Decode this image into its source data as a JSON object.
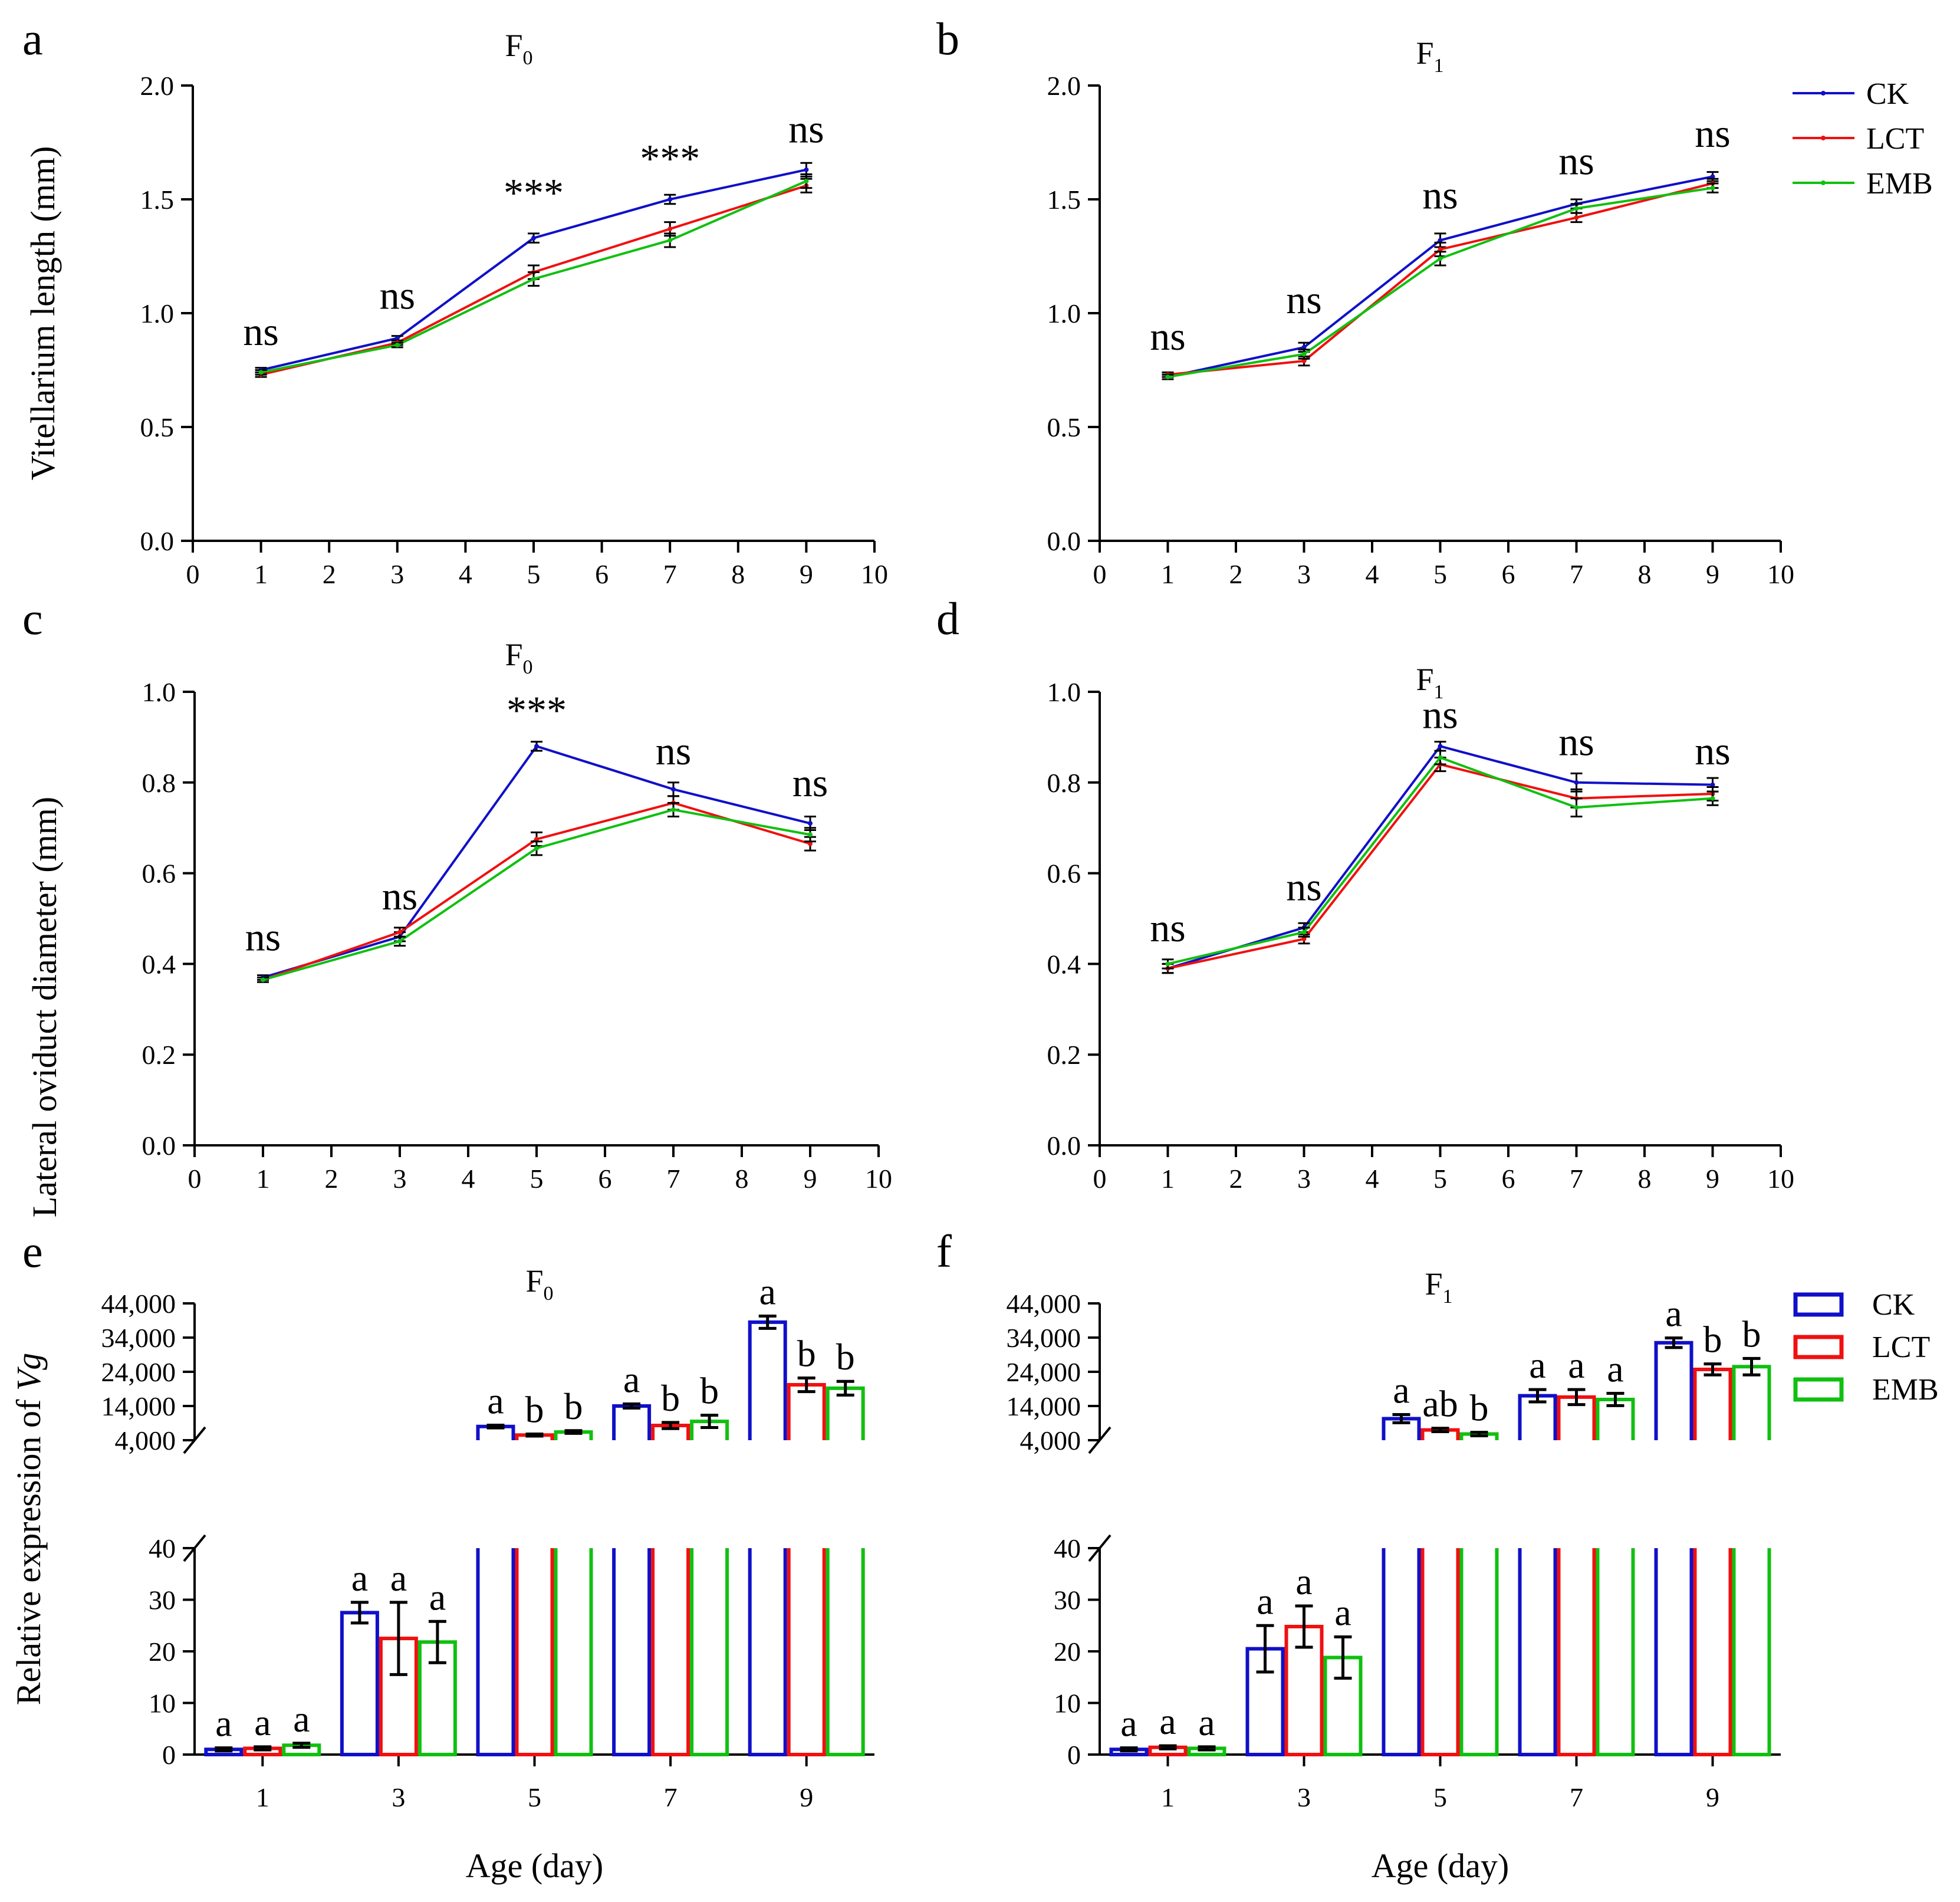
{
  "colors": {
    "CK": "#1010c8",
    "LCT": "#f01010",
    "EMB": "#10c010",
    "ink": "#000000"
  },
  "legend": {
    "line": [
      "CK",
      "LCT",
      "EMB"
    ],
    "bar": [
      "CK",
      "LCT",
      "EMB"
    ]
  },
  "x_axis_title": "Age (day)",
  "chart_data": [
    {
      "id": "a",
      "type": "line",
      "title": "F0",
      "title_main": "F",
      "title_sub": "0",
      "ylabel": "Vitellarium length (mm)",
      "xlim": [
        0,
        10
      ],
      "ylim": [
        0,
        2.0
      ],
      "xticks": [
        0,
        1,
        2,
        3,
        4,
        5,
        6,
        7,
        8,
        9,
        10
      ],
      "yticks": [
        "0.0",
        "0.5",
        "1.0",
        "1.5",
        "2.0"
      ],
      "x": [
        1,
        3,
        5,
        7,
        9
      ],
      "series": [
        {
          "name": "CK",
          "values": [
            0.75,
            0.89,
            1.33,
            1.5,
            1.63
          ],
          "err": [
            0.01,
            0.01,
            0.02,
            0.02,
            0.03
          ]
        },
        {
          "name": "LCT",
          "values": [
            0.73,
            0.87,
            1.18,
            1.37,
            1.56
          ],
          "err": [
            0.01,
            0.01,
            0.03,
            0.03,
            0.03
          ]
        },
        {
          "name": "EMB",
          "values": [
            0.74,
            0.86,
            1.15,
            1.32,
            1.58
          ],
          "err": [
            0.01,
            0.01,
            0.03,
            0.03,
            0.03
          ]
        }
      ],
      "annotations": [
        "ns",
        "ns",
        "***",
        "***",
        "ns"
      ],
      "annotation_y": [
        0.86,
        1.02,
        1.47,
        1.62,
        1.75
      ]
    },
    {
      "id": "b",
      "type": "line",
      "title": "F1",
      "title_main": "F",
      "title_sub": "1",
      "ylabel": "",
      "xlim": [
        0,
        10
      ],
      "ylim": [
        0,
        2.0
      ],
      "xticks": [
        0,
        1,
        2,
        3,
        4,
        5,
        6,
        7,
        8,
        9,
        10
      ],
      "yticks": [
        "0.0",
        "0.5",
        "1.0",
        "1.5",
        "2.0"
      ],
      "x": [
        1,
        3,
        5,
        7,
        9
      ],
      "series": [
        {
          "name": "CK",
          "values": [
            0.72,
            0.85,
            1.32,
            1.48,
            1.6
          ],
          "err": [
            0.01,
            0.02,
            0.03,
            0.02,
            0.02
          ]
        },
        {
          "name": "LCT",
          "values": [
            0.73,
            0.79,
            1.28,
            1.42,
            1.57
          ],
          "err": [
            0.01,
            0.02,
            0.03,
            0.02,
            0.02
          ]
        },
        {
          "name": "EMB",
          "values": [
            0.72,
            0.82,
            1.24,
            1.46,
            1.55
          ],
          "err": [
            0.01,
            0.02,
            0.03,
            0.02,
            0.02
          ]
        }
      ],
      "annotations": [
        "ns",
        "ns",
        "ns",
        "ns",
        "ns"
      ],
      "annotation_y": [
        0.84,
        1.0,
        1.46,
        1.61,
        1.73
      ]
    },
    {
      "id": "c",
      "type": "line",
      "title": "F0",
      "title_main": "F",
      "title_sub": "0",
      "ylabel": "Lateral oviduct diameter (mm)",
      "xlim": [
        0,
        10
      ],
      "ylim": [
        0,
        1.0
      ],
      "xticks": [
        0,
        1,
        2,
        3,
        4,
        5,
        6,
        7,
        8,
        9,
        10
      ],
      "yticks": [
        "0.0",
        "0.2",
        "0.4",
        "0.6",
        "0.8",
        "1.0"
      ],
      "x": [
        1,
        3,
        5,
        7,
        9
      ],
      "series": [
        {
          "name": "CK",
          "values": [
            0.37,
            0.46,
            0.88,
            0.785,
            0.71
          ],
          "err": [
            0.005,
            0.01,
            0.01,
            0.015,
            0.015
          ]
        },
        {
          "name": "LCT",
          "values": [
            0.365,
            0.47,
            0.675,
            0.755,
            0.665
          ],
          "err": [
            0.005,
            0.01,
            0.015,
            0.015,
            0.015
          ]
        },
        {
          "name": "EMB",
          "values": [
            0.365,
            0.45,
            0.655,
            0.74,
            0.685
          ],
          "err": [
            0.005,
            0.01,
            0.015,
            0.015,
            0.015
          ]
        }
      ],
      "annotations": [
        "ns",
        "ns",
        "***",
        "ns",
        "ns"
      ],
      "annotation_y": [
        0.43,
        0.52,
        0.93,
        0.84,
        0.77
      ]
    },
    {
      "id": "d",
      "type": "line",
      "title": "F1",
      "title_main": "F",
      "title_sub": "1",
      "ylabel": "",
      "xlim": [
        0,
        10
      ],
      "ylim": [
        0,
        1.0
      ],
      "xticks": [
        0,
        1,
        2,
        3,
        4,
        5,
        6,
        7,
        8,
        9,
        10
      ],
      "yticks": [
        "0.0",
        "0.2",
        "0.4",
        "0.6",
        "0.8",
        "1.0"
      ],
      "x": [
        1,
        3,
        5,
        7,
        9
      ],
      "series": [
        {
          "name": "CK",
          "values": [
            0.39,
            0.48,
            0.88,
            0.8,
            0.795
          ],
          "err": [
            0.01,
            0.01,
            0.01,
            0.02,
            0.015
          ]
        },
        {
          "name": "LCT",
          "values": [
            0.39,
            0.455,
            0.84,
            0.765,
            0.775
          ],
          "err": [
            0.01,
            0.01,
            0.015,
            0.02,
            0.015
          ]
        },
        {
          "name": "EMB",
          "values": [
            0.4,
            0.47,
            0.855,
            0.745,
            0.765
          ],
          "err": [
            0.01,
            0.01,
            0.015,
            0.02,
            0.015
          ]
        }
      ],
      "annotations": [
        "ns",
        "ns",
        "ns",
        "ns",
        "ns"
      ],
      "annotation_y": [
        0.45,
        0.54,
        0.92,
        0.86,
        0.84
      ]
    },
    {
      "id": "e",
      "type": "bar",
      "title": "F0",
      "title_main": "F",
      "title_sub": "0",
      "ylabel": "Relative expression of ",
      "ylabel_gene": "Vg",
      "categories": [
        "1",
        "3",
        "5",
        "7",
        "9"
      ],
      "lower_ylim": [
        0,
        40
      ],
      "lower_yticks": [
        "0",
        "10",
        "20",
        "30",
        "40"
      ],
      "upper_ylim": [
        4000,
        44000
      ],
      "upper_yticks": [
        "4,000",
        "14,000",
        "24,000",
        "34,000",
        "44,000"
      ],
      "series": [
        {
          "name": "CK",
          "values": [
            1,
            27.5,
            8000,
            14000,
            38500
          ],
          "err": [
            0.3,
            2,
            400,
            600,
            1800
          ]
        },
        {
          "name": "LCT",
          "values": [
            1.2,
            22.5,
            5500,
            8300,
            20200
          ],
          "err": [
            0.3,
            7,
            300,
            900,
            2000
          ]
        },
        {
          "name": "EMB",
          "values": [
            1.8,
            21.8,
            6400,
            9500,
            19200
          ],
          "err": [
            0.4,
            4,
            400,
            1800,
            2000
          ]
        }
      ],
      "letters": [
        [
          "a",
          "a",
          "a"
        ],
        [
          "a",
          "a",
          "a"
        ],
        [
          "a",
          "b",
          "b"
        ],
        [
          "a",
          "b",
          "b"
        ],
        [
          "a",
          "b",
          "b"
        ]
      ]
    },
    {
      "id": "f",
      "type": "bar",
      "title": "F1",
      "title_main": "F",
      "title_sub": "1",
      "ylabel": "",
      "categories": [
        "1",
        "3",
        "5",
        "7",
        "9"
      ],
      "lower_ylim": [
        0,
        40
      ],
      "lower_yticks": [
        "0",
        "10",
        "20",
        "30",
        "40"
      ],
      "upper_ylim": [
        4000,
        44000
      ],
      "upper_yticks": [
        "4,000",
        "14,000",
        "24,000",
        "34,000",
        "44,000"
      ],
      "series": [
        {
          "name": "CK",
          "values": [
            1,
            20.5,
            10300,
            17000,
            32500
          ],
          "err": [
            0.3,
            4.5,
            1200,
            1800,
            1400
          ]
        },
        {
          "name": "LCT",
          "values": [
            1.4,
            24.8,
            7000,
            16600,
            24700
          ],
          "err": [
            0.3,
            4,
            500,
            2200,
            1600
          ]
        },
        {
          "name": "EMB",
          "values": [
            1.2,
            18.8,
            5800,
            15900,
            25500
          ],
          "err": [
            0.3,
            4,
            500,
            1800,
            2400
          ]
        }
      ],
      "letters": [
        [
          "a",
          "a",
          "a"
        ],
        [
          "a",
          "a",
          "a"
        ],
        [
          "a",
          "ab",
          "b"
        ],
        [
          "a",
          "a",
          "a"
        ],
        [
          "a",
          "b",
          "b"
        ]
      ]
    }
  ]
}
